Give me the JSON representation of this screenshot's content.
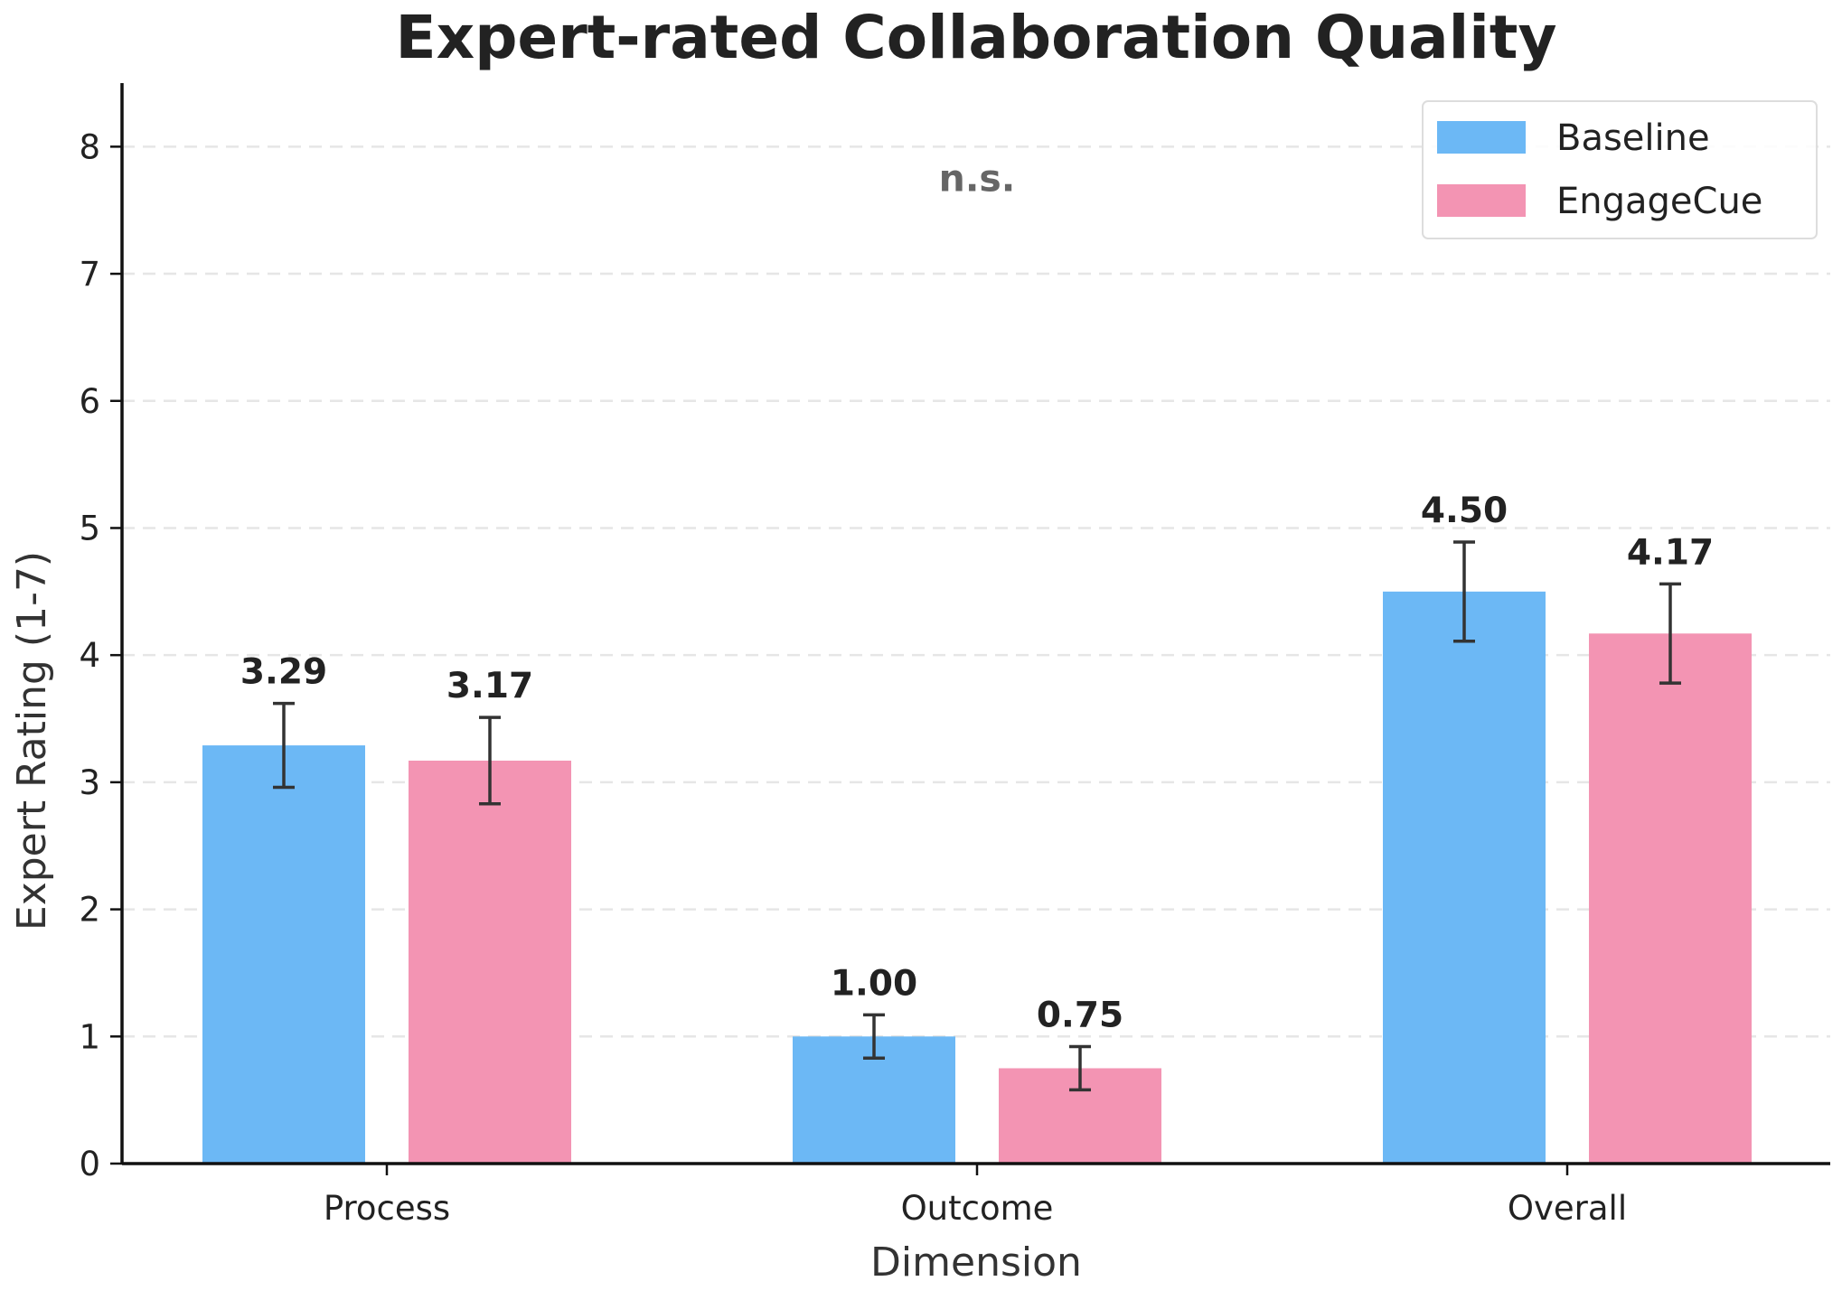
{
  "chart_data": {
    "type": "bar",
    "title": "Expert-rated Collaboration Quality",
    "xlabel": "Dimension",
    "ylabel": "Expert Rating (1-7)",
    "categories": [
      "Process",
      "Outcome",
      "Overall"
    ],
    "ylim": [
      0,
      8.5
    ],
    "yticks": [
      0,
      1,
      2,
      3,
      4,
      5,
      6,
      7,
      8
    ],
    "grid": "horizontal dashed",
    "legend_position": "top-right",
    "series": [
      {
        "name": "Baseline",
        "color": "#6cb8f5",
        "values": [
          3.29,
          1.0,
          4.5
        ],
        "labels": [
          "3.29",
          "1.00",
          "4.50"
        ],
        "error": [
          0.33,
          0.17,
          0.39
        ]
      },
      {
        "name": "EngageCue",
        "color": "#f394b3",
        "values": [
          3.17,
          0.75,
          4.17
        ],
        "labels": [
          "3.17",
          "0.75",
          "4.17"
        ],
        "error": [
          0.34,
          0.17,
          0.39
        ]
      }
    ],
    "annotations": [
      {
        "text": "n.s.",
        "category": "Outcome",
        "y": 7.75
      }
    ]
  }
}
